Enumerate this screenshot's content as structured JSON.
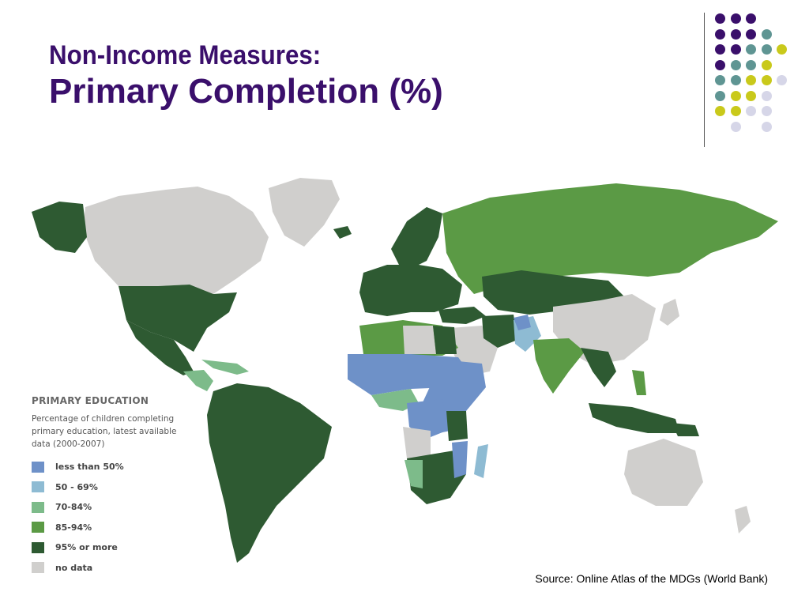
{
  "slide": {
    "title_line1": "Non-Income Measures:",
    "title_line2": "Primary Completion (%)",
    "source": "Source: Online Atlas of the MDGs (World Bank)"
  },
  "decoration": {
    "dot_colors": [
      "#3a0f6b",
      "#5f9593",
      "#c9c91b",
      "#d6d6e8"
    ]
  },
  "legend": {
    "title": "PRIMARY EDUCATION",
    "description_lines": [
      "Percentage of children completing",
      "primary education, latest available",
      "data (2000-2007)"
    ],
    "items": [
      {
        "label": "less than 50%",
        "color": "#6e91c8"
      },
      {
        "label": "50 - 69%",
        "color": "#8ebbd3"
      },
      {
        "label": "70-84%",
        "color": "#7dbb8a"
      },
      {
        "label": "85-94%",
        "color": "#5b9a45"
      },
      {
        "label": "95% or more",
        "color": "#2e5a32"
      },
      {
        "label": "no data",
        "color": "#d0cfcd"
      }
    ]
  },
  "map_colors": {
    "ocean": "#ffffff",
    "country_border": "#ffffff"
  }
}
